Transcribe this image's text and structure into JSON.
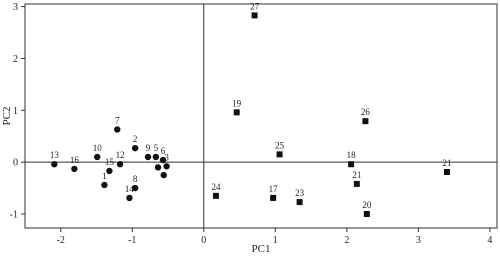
{
  "chart_data": {
    "type": "scatter",
    "x_label": "PC1",
    "y_label": "PC2",
    "xlim": [
      -2.5,
      4.1
    ],
    "ylim": [
      -1.27,
      3.05
    ],
    "xticks": [
      -2,
      -1,
      0,
      1,
      2,
      3,
      4
    ],
    "yticks": [
      -1,
      0,
      1,
      2,
      3
    ],
    "reference_lines": true,
    "series": [
      {
        "marker": "circle",
        "color": "#111111",
        "labels": [
          "13",
          "16",
          "10",
          "12",
          "15",
          "1",
          "7",
          "2",
          "14",
          "8",
          "9",
          "5",
          "6",
          "3",
          null,
          null
        ],
        "x": [
          -2.09,
          -1.81,
          -1.49,
          -1.17,
          -1.32,
          -1.39,
          -1.21,
          -0.96,
          -1.04,
          -0.96,
          -0.78,
          -0.67,
          -0.57,
          -0.52,
          -0.64,
          -0.56
        ],
        "values": [
          -0.04,
          -0.13,
          0.1,
          -0.04,
          -0.17,
          -0.44,
          0.63,
          0.27,
          -0.69,
          -0.5,
          0.1,
          0.1,
          0.04,
          -0.08,
          -0.1,
          -0.25
        ]
      },
      {
        "marker": "square",
        "color": "#111111",
        "labels": [
          "27",
          "19",
          "26",
          "25",
          "18",
          "21",
          "21",
          "24",
          "17",
          "23",
          "20"
        ],
        "x": [
          0.71,
          0.46,
          2.26,
          1.06,
          2.06,
          3.4,
          2.14,
          0.17,
          0.97,
          1.34,
          2.28
        ],
        "values": [
          2.83,
          0.96,
          0.79,
          0.15,
          -0.04,
          -0.19,
          -0.42,
          -0.65,
          -0.69,
          -0.77,
          -1.0
        ]
      }
    ]
  }
}
